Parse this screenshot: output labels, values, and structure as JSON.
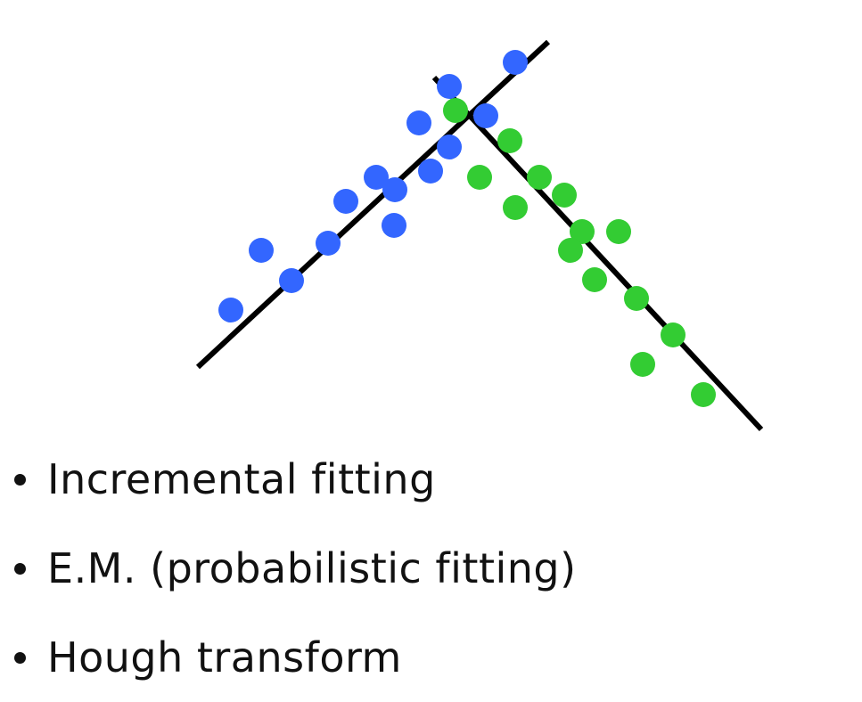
{
  "colors": {
    "line": "#000000",
    "cluster_a": "#3366ff",
    "cluster_b": "#33cc33",
    "text": "#111111"
  },
  "bullets": [
    "Incremental fitting",
    "E.M. (probabilistic fitting)",
    "Hough transform"
  ]
}
